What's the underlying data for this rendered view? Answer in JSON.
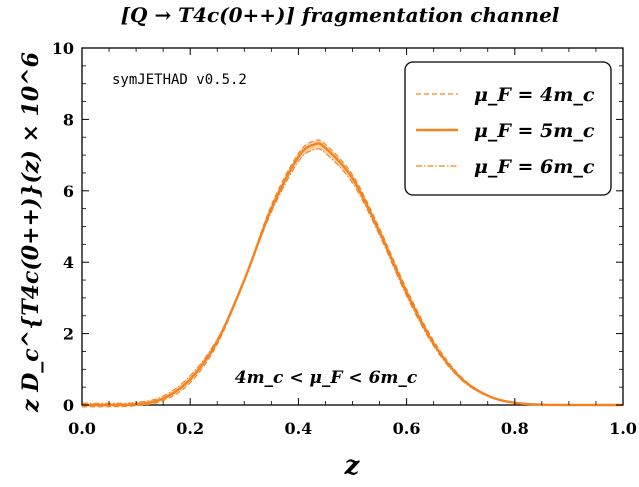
{
  "chart_data": {
    "type": "line",
    "title": "[Q → T4c(0++)] fragmentation channel",
    "xlabel": "z",
    "ylabel": "z D_c^{T4c(0++)}(z) × 10^6",
    "xlim": [
      0,
      1
    ],
    "ylim": [
      0,
      10
    ],
    "xticks": [
      "0.0",
      "0.2",
      "0.4",
      "0.6",
      "0.8",
      "1.0"
    ],
    "yticks": [
      "0",
      "2",
      "4",
      "6",
      "8",
      "10"
    ],
    "grid": false,
    "legend_position": "top-right",
    "annotations": {
      "version": "symJETHAD v0.5.2",
      "band_label": "4m_c < μ_F < 6m_c"
    },
    "x": [
      0.0,
      0.05,
      0.1,
      0.15,
      0.2,
      0.25,
      0.3,
      0.35,
      0.4,
      0.43,
      0.45,
      0.5,
      0.55,
      0.6,
      0.65,
      0.7,
      0.75,
      0.8,
      0.85,
      0.9,
      0.95,
      1.0
    ],
    "series": [
      {
        "name": "μ_F = 4m_c",
        "style": "dashed",
        "color": "#f58220",
        "values": [
          -0.05,
          -0.05,
          -0.02,
          0.12,
          0.62,
          1.7,
          3.5,
          5.6,
          7.05,
          7.4,
          7.3,
          6.45,
          4.95,
          3.25,
          1.8,
          0.8,
          0.28,
          0.07,
          0.01,
          0.0,
          0.0,
          0.0
        ]
      },
      {
        "name": "μ_F = 5m_c",
        "style": "solid",
        "color": "#f58220",
        "values": [
          0.0,
          0.0,
          0.02,
          0.18,
          0.72,
          1.78,
          3.5,
          5.5,
          6.95,
          7.3,
          7.2,
          6.35,
          4.85,
          3.15,
          1.72,
          0.76,
          0.26,
          0.06,
          0.01,
          0.0,
          0.0,
          0.0
        ]
      },
      {
        "name": "μ_F = 6m_c",
        "style": "dashdot",
        "color": "#f58220",
        "values": [
          0.05,
          0.05,
          0.07,
          0.25,
          0.82,
          1.85,
          3.5,
          5.4,
          6.82,
          7.15,
          7.05,
          6.22,
          4.75,
          3.05,
          1.65,
          0.72,
          0.24,
          0.05,
          0.01,
          0.0,
          0.0,
          0.0
        ]
      }
    ],
    "band": {
      "color": "#fbd3a8"
    }
  }
}
